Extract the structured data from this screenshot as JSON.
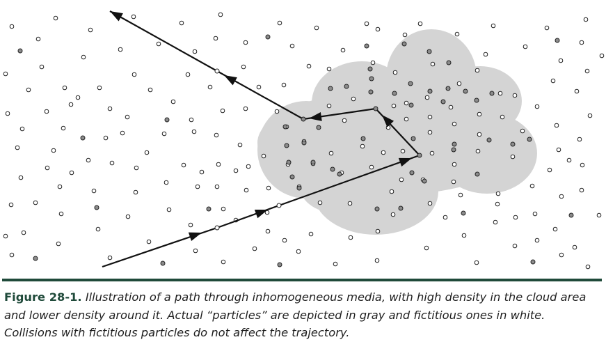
{
  "caption": {
    "label": "Figure 28-1.",
    "text": "Illustration of a path through inhomogeneous media, with high density in the cloud area and lower density around it. Actual “particles” are depicted in gray and fictitious ones in white. Collisions with fictitious particles do not affect the trajectory."
  },
  "colors": {
    "cloud": "#d4d4d4",
    "actual_particle": "#8c8c8c",
    "fictitious_particle": "#ffffff",
    "path": "#111111",
    "rule": "#1f4a3a"
  },
  "legend": {
    "actual_particles": "gray",
    "fictitious_particles": "white"
  }
}
